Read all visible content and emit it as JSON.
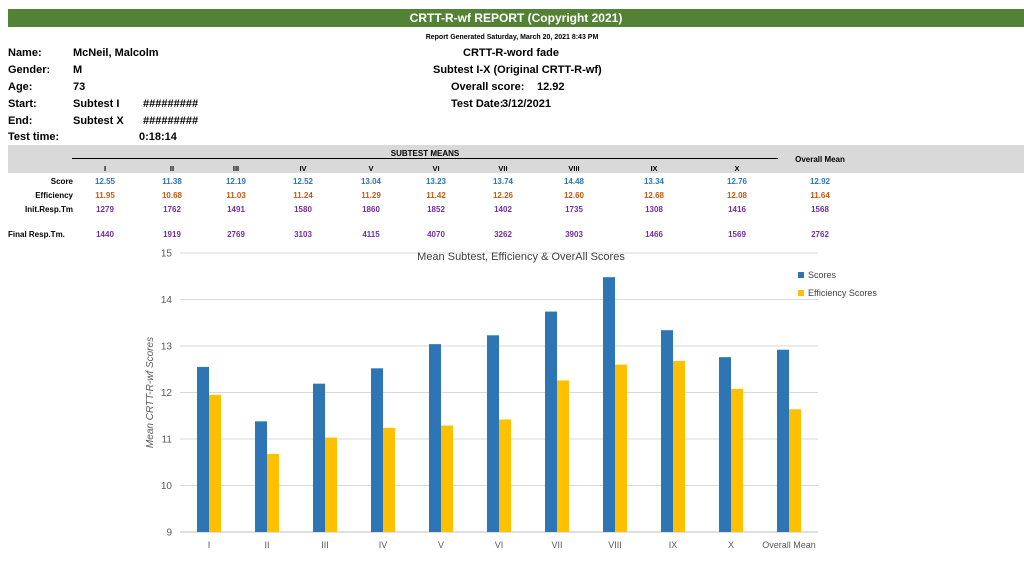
{
  "report": {
    "title": "CRTT-R-wf REPORT (Copyright 2021)",
    "generated": "Report Generated Saturday, March 20, 2021 8:43 PM"
  },
  "patient": {
    "name_label": "Name:",
    "name": "McNeil, Malcolm",
    "gender_label": "Gender:",
    "gender": "M",
    "age_label": "Age:",
    "age": "73",
    "start_label": "Start:",
    "start_subtest": "Subtest I",
    "start_value": "#########",
    "end_label": "End:",
    "end_subtest": "Subtest X",
    "end_value": "#########",
    "time_label": "Test time:",
    "time": "0:18:14"
  },
  "test": {
    "name": "CRTT-R-word fade",
    "subtests": "Subtest I-X (Original CRTT-R-wf)",
    "overall_label": "Overall score:",
    "overall_value": "12.92",
    "date_label": "Test Date:",
    "date": "3/12/2021"
  },
  "table": {
    "group_header": "SUBTEST MEANS",
    "overall_header": "Overall Mean",
    "columns": [
      "I",
      "II",
      "III",
      "IV",
      "V",
      "VI",
      "VII",
      "VIII",
      "IX",
      "X"
    ],
    "rows": [
      {
        "label": "Score",
        "color": "#2e75b6",
        "values": [
          "12.55",
          "11.38",
          "12.19",
          "12.52",
          "13.04",
          "13.23",
          "13.74",
          "14.48",
          "13.34",
          "12.76"
        ],
        "overall": "12.92"
      },
      {
        "label": "Efficiency",
        "color": "#c55a11",
        "values": [
          "11.95",
          "10.68",
          "11.03",
          "11.24",
          "11.29",
          "11.42",
          "12.26",
          "12.60",
          "12.68",
          "12.08"
        ],
        "overall": "11.64"
      },
      {
        "label": "Init.Resp.Tm",
        "color": "#7030a0",
        "values": [
          "1279",
          "1762",
          "1491",
          "1580",
          "1860",
          "1852",
          "1402",
          "1735",
          "1308",
          "1416"
        ],
        "overall": "1568"
      },
      {
        "label": "Final Resp.Tm.",
        "color": "#7030a0",
        "values": [
          "1440",
          "1919",
          "2769",
          "3103",
          "4115",
          "4070",
          "3262",
          "3903",
          "1466",
          "1569"
        ],
        "overall": "2762"
      }
    ]
  },
  "chart_data": {
    "type": "bar",
    "title": "Mean Subtest, Efficiency & OverAll Scores",
    "ylabel": "Mean CRTT-R-wf Scores",
    "xlabel": "",
    "categories": [
      "I",
      "II",
      "III",
      "IV",
      "V",
      "VI",
      "VII",
      "VIII",
      "IX",
      "X",
      "Overall Mean"
    ],
    "ylim": [
      9,
      15
    ],
    "yticks": [
      9,
      10,
      11,
      12,
      13,
      14,
      15
    ],
    "grid": true,
    "legend_position": "top-right",
    "series": [
      {
        "name": "Scores",
        "color": "#2e75b6",
        "values": [
          12.55,
          11.38,
          12.19,
          12.52,
          13.04,
          13.23,
          13.74,
          14.48,
          13.34,
          12.76,
          12.92
        ]
      },
      {
        "name": "Efficiency Scores",
        "color": "#ffc000",
        "values": [
          11.95,
          10.68,
          11.03,
          11.24,
          11.29,
          11.42,
          12.26,
          12.6,
          12.68,
          12.08,
          11.64
        ]
      }
    ]
  }
}
